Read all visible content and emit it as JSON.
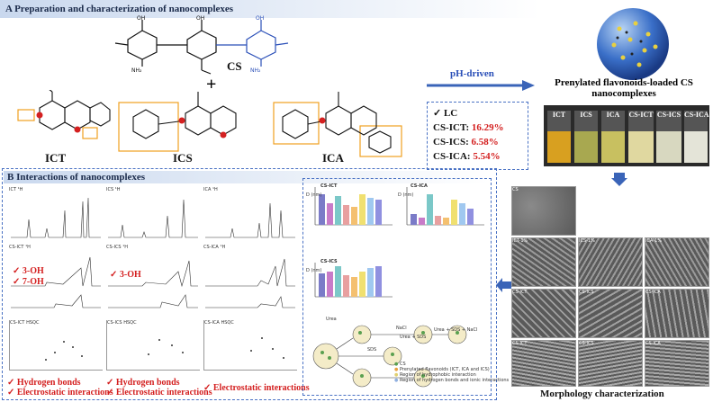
{
  "section_a": {
    "title": "A Preparation and characterization of nanocomplexes"
  },
  "section_b": {
    "title": "B Interactions of nanocomplexes"
  },
  "molecules": {
    "cs": "CS",
    "ict": "ICT",
    "ics": "ICS",
    "ica": "ICA",
    "plus": "+"
  },
  "process": {
    "label": "pH-driven"
  },
  "nano_title": "Prenylated flavonoids-loaded CS nanocomplexes",
  "vials": [
    "ICT",
    "ICS",
    "ICA",
    "CS-ICT",
    "CS-ICS",
    "CS-ICA"
  ],
  "lc": {
    "header": "LC",
    "items": [
      {
        "label": "CS-ICT:",
        "value": "16.29%"
      },
      {
        "label": "CS-ICS:",
        "value": "6.58%"
      },
      {
        "label": "CS-ICA:",
        "value": "5.54%"
      }
    ]
  },
  "nmr_panels": [
    {
      "title": "ICT ¹H"
    },
    {
      "title": "ICS ¹H"
    },
    {
      "title": "ICA ¹H"
    },
    {
      "title": "CS-ICT ¹H"
    },
    {
      "title": "CS-ICS ¹H"
    },
    {
      "title": "CS-ICA ¹H"
    },
    {
      "title": "CS-ICT HSQC"
    },
    {
      "title": "CS-ICS HSQC"
    },
    {
      "title": "CS-ICA HSQC"
    }
  ],
  "annotations": {
    "oh_ict_1": "3-OH",
    "oh_ict_2": "7-OH",
    "oh_ics": "3-OH",
    "bottom_1a": "Hydrogen bonds",
    "bottom_1b": "Electrostatic interactions",
    "bottom_2a": "Hydrogen bonds",
    "bottom_2b": "Electrostatic interactions",
    "bottom_3": "Electrostatic interactions"
  },
  "bar_charts": [
    {
      "title": "CS-ICT",
      "ylabel": "D (nm)"
    },
    {
      "title": "CS-ICA",
      "ylabel": "D (nm)"
    },
    {
      "title": "CS-ICS",
      "ylabel": "D (nm)"
    }
  ],
  "mechanism": {
    "labels": [
      "Urea",
      "SDS",
      "NaCl",
      "Urea + SDS",
      "Urea + SDS + NaCl"
    ],
    "legend": [
      "CS",
      "Prenylated flavonoids (ICT, ICA and ICS)",
      "Region of hydrophobic interaction",
      "Region of hydrogen bonds and ionic interactions"
    ]
  },
  "morphology": {
    "caption": "Morphology characterization",
    "tiles": [
      "CS",
      "ICT-1%",
      "ICS-1%",
      "ICA-1%",
      "CS-ICT",
      "CS-ICS",
      "CS-ICA",
      "CS-ICT",
      "CS-ICS",
      "CS-ICA"
    ]
  }
}
